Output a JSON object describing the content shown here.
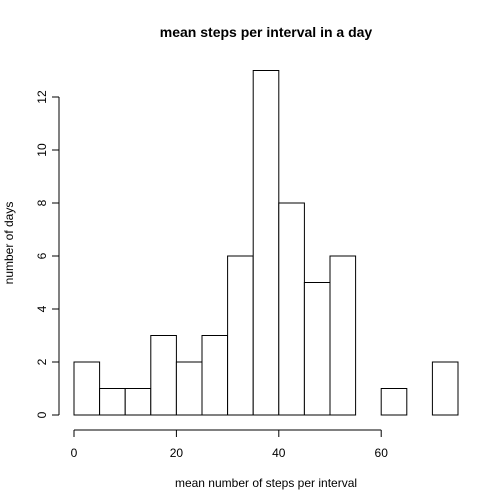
{
  "chart_data": {
    "type": "bar",
    "title": "mean steps per interval in a day",
    "xlabel": "mean number of steps per interval",
    "ylabel": "number of days",
    "bin_edges": [
      0,
      5,
      10,
      15,
      20,
      25,
      30,
      35,
      40,
      45,
      50,
      55,
      60,
      65,
      70,
      75
    ],
    "values": [
      2,
      1,
      1,
      3,
      2,
      3,
      6,
      13,
      8,
      5,
      6,
      0,
      1,
      0,
      2
    ],
    "xlim": [
      0,
      75
    ],
    "ylim": [
      0,
      13
    ],
    "x_ticks": [
      0,
      20,
      40,
      60
    ],
    "y_ticks": [
      0,
      2,
      4,
      6,
      8,
      10,
      12
    ],
    "grid": false,
    "bar_fill": "#ffffff",
    "bar_stroke": "#000000"
  }
}
